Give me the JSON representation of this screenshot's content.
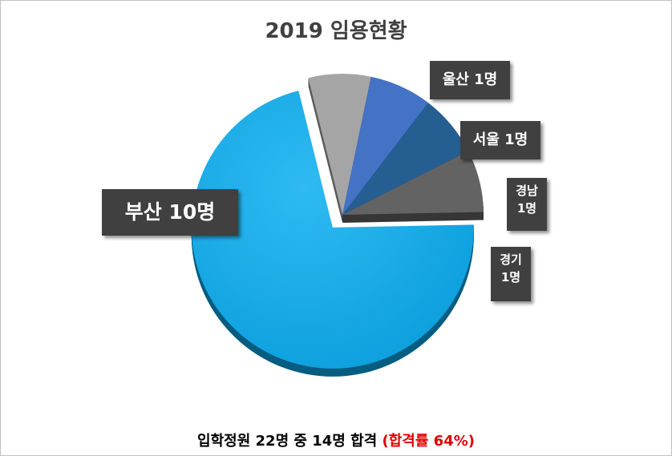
{
  "chart_data": {
    "type": "pie",
    "title": "2019 임용현황",
    "slices": [
      {
        "name": "부산",
        "value": 10,
        "label": "부산 10명",
        "color": "#0aa9ea",
        "exploded": false
      },
      {
        "name": "울산",
        "value": 1,
        "label": "울산 1명",
        "color": "#a5a5a5",
        "exploded": false
      },
      {
        "name": "서울",
        "value": 1,
        "label": "서울 1명",
        "color": "#4472c4",
        "exploded": false
      },
      {
        "name": "경남",
        "value": 1,
        "label_name": "경남",
        "label_count": "1명",
        "color": "#255e91",
        "exploded": false
      },
      {
        "name": "경기",
        "value": 1,
        "label_name": "경기",
        "label_count": "1명",
        "color": "#636363",
        "exploded": false
      }
    ],
    "legend": "none",
    "grid": false
  },
  "footer": {
    "text": "입학정원 22명 중 14명 합격 ",
    "rate": "(합격률 64%)"
  }
}
